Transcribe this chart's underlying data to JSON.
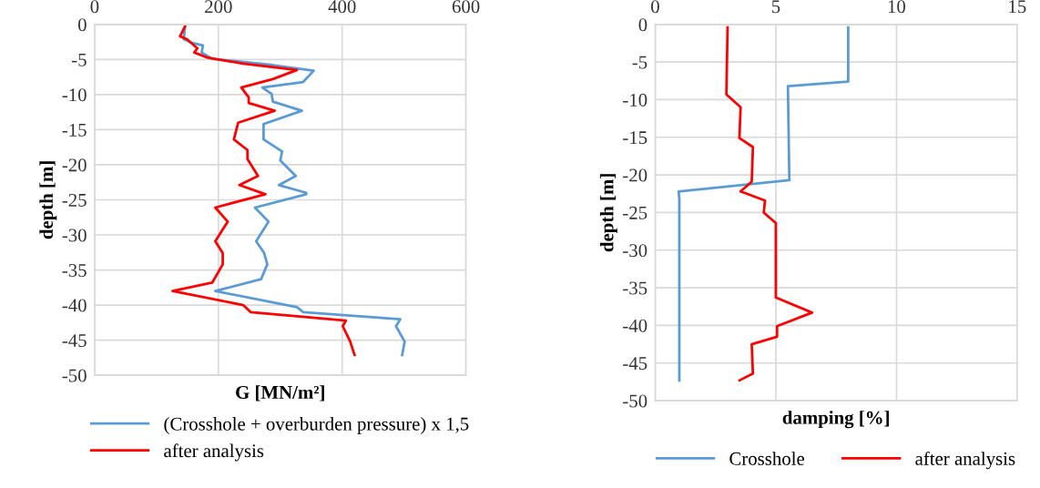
{
  "chart_data": [
    {
      "type": "line",
      "xlabel": "G [MN/m²]",
      "ylabel": "depth [m]",
      "xlim": [
        0,
        600
      ],
      "xticks": [
        0,
        200,
        400,
        600
      ],
      "ylim": [
        -50,
        0
      ],
      "yticks": [
        -50,
        -45,
        -40,
        -35,
        -30,
        -25,
        -20,
        -15,
        -10,
        -5,
        0
      ],
      "grid": true,
      "legend": "bottom",
      "marker": "none",
      "line_style": "solid",
      "series": [
        {
          "name": "(Crosshole + overburden pressure) x 1,5",
          "color": "#5b9bd5",
          "x": [
            146,
            144,
            156,
            175,
            173,
            190,
            288,
            354,
            337,
            271,
            286,
            288,
            335,
            273,
            273,
            303,
            300,
            325,
            298,
            342,
            342,
            259,
            281,
            261,
            274,
            279,
            269,
            195,
            327,
            337,
            494,
            487,
            501,
            497
          ],
          "values": [
            -0.4,
            -2.1,
            -2.6,
            -3,
            -4,
            -4.9,
            -5.8,
            -6.6,
            -8.2,
            -9,
            -9.9,
            -11,
            -12.3,
            -14.2,
            -16.4,
            -18.1,
            -19.4,
            -21.6,
            -22.9,
            -24,
            -24.2,
            -26.1,
            -28.1,
            -30.9,
            -32.6,
            -34.2,
            -36.3,
            -38,
            -40.3,
            -41,
            -42,
            -43,
            -45.2,
            -47.1
          ]
        },
        {
          "name": "after analysis",
          "color": "#ff0000",
          "x": [
            146,
            138,
            149,
            166,
            161,
            181,
            240,
            327,
            288,
            237,
            249,
            249,
            291,
            232,
            225,
            247,
            247,
            264,
            234,
            276,
            195,
            215,
            195,
            207,
            207,
            190,
            126,
            240,
            252,
            406,
            401,
            413,
            420
          ],
          "values": [
            -0.3,
            -1.7,
            -2.1,
            -3.4,
            -4,
            -4.7,
            -5.6,
            -6.5,
            -7.8,
            -9,
            -10.4,
            -11.2,
            -12.3,
            -14,
            -16.4,
            -17.9,
            -19.2,
            -21.6,
            -22.9,
            -24.2,
            -26.1,
            -28.1,
            -30.9,
            -32.6,
            -34.2,
            -36.8,
            -38,
            -40,
            -41,
            -42.2,
            -43,
            -45.2,
            -47.1
          ]
        }
      ]
    },
    {
      "type": "line",
      "xlabel": "damping [%]",
      "ylabel": "depth [m]",
      "xlim": [
        0,
        15
      ],
      "xticks": [
        0,
        5,
        10,
        15
      ],
      "ylim": [
        -50,
        0
      ],
      "yticks": [
        -50,
        -45,
        -40,
        -35,
        -30,
        -25,
        -20,
        -15,
        -10,
        -5,
        0
      ],
      "grid": true,
      "legend": "bottom",
      "marker": "none",
      "line_style": "solid",
      "series": [
        {
          "name": "Crosshole",
          "color": "#5b9bd5",
          "x": [
            8,
            8,
            8,
            5.5,
            5.56,
            0.97,
            1,
            1
          ],
          "values": [
            -0.4,
            -6.7,
            -7.6,
            -8.2,
            -20.7,
            -22.2,
            -23.2,
            -47.3
          ]
        },
        {
          "name": "after analysis",
          "color": "#ff0000",
          "x": [
            3,
            2.95,
            3.54,
            3.49,
            4.05,
            4.0,
            3.54,
            4.55,
            4.5,
            5.0,
            5.0,
            6.5,
            5.05,
            5.05,
            4.0,
            4.05,
            3.5
          ],
          "values": [
            -0.4,
            -9.3,
            -11,
            -15.1,
            -16.3,
            -20.9,
            -22.2,
            -23.4,
            -25,
            -26.4,
            -36.3,
            -38.3,
            -40.1,
            -41.5,
            -42.5,
            -46.4,
            -47.3
          ]
        }
      ]
    }
  ]
}
